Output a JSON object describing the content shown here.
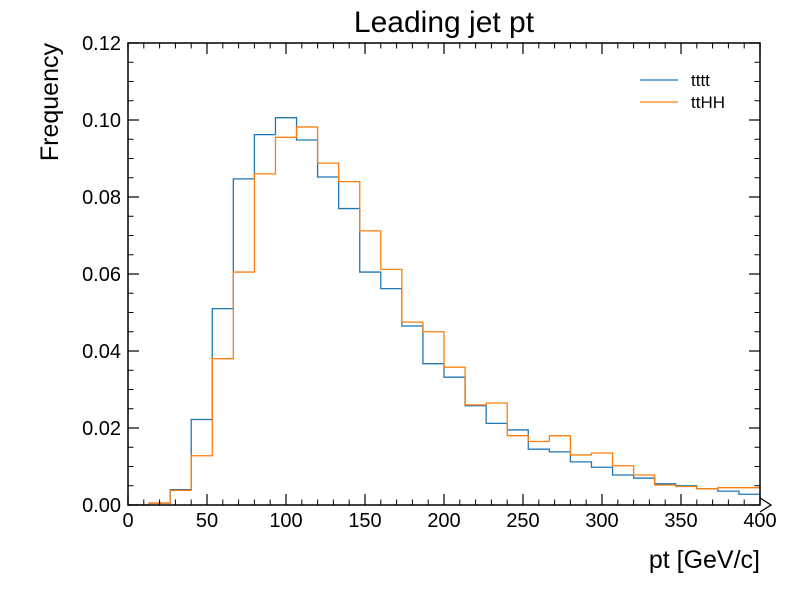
{
  "chart_data": {
    "type": "line",
    "title": "Leading jet pt",
    "xlabel": "pt [GeV/c]",
    "ylabel": "Frequency",
    "xlim": [
      0,
      400
    ],
    "ylim": [
      0,
      0.12
    ],
    "xticks": [
      0,
      50,
      100,
      150,
      200,
      250,
      300,
      350,
      400
    ],
    "xtick_labels": [
      "0",
      "50",
      "100",
      "150",
      "200",
      "250",
      "300",
      "350",
      "400"
    ],
    "yticks": [
      0,
      0.02,
      0.04,
      0.06,
      0.08,
      0.1,
      0.12
    ],
    "ytick_labels": [
      "0.00",
      "0.02",
      "0.04",
      "0.06",
      "0.08",
      "0.10",
      "0.12"
    ],
    "grid": false,
    "legend_position": "top-right",
    "bin_edges": [
      0,
      13.33,
      26.67,
      40,
      53.33,
      66.67,
      80,
      93.33,
      106.67,
      120,
      133.33,
      146.67,
      160,
      173.33,
      186.67,
      200,
      213.33,
      226.67,
      240,
      253.33,
      266.67,
      280,
      293.33,
      306.67,
      320,
      333.33,
      346.67,
      360,
      373.33,
      386.67,
      400
    ],
    "series": [
      {
        "name": "tttt",
        "color": "#1f77b4",
        "values": [
          0,
          0.0005,
          0.004,
          0.0222,
          0.051,
          0.0847,
          0.0962,
          0.1006,
          0.0948,
          0.0852,
          0.077,
          0.0605,
          0.0562,
          0.0465,
          0.0367,
          0.0332,
          0.0258,
          0.0212,
          0.0195,
          0.0145,
          0.0138,
          0.0112,
          0.0098,
          0.0078,
          0.007,
          0.0055,
          0.005,
          0.0042,
          0.0036,
          0.0028
        ]
      },
      {
        "name": "ttHH",
        "color": "#ff7f0e",
        "values": [
          0,
          0.0005,
          0.0038,
          0.0128,
          0.038,
          0.0605,
          0.086,
          0.0955,
          0.0982,
          0.0888,
          0.084,
          0.0712,
          0.0612,
          0.0475,
          0.045,
          0.0358,
          0.026,
          0.0265,
          0.018,
          0.0165,
          0.018,
          0.013,
          0.0135,
          0.0102,
          0.0078,
          0.0052,
          0.0048,
          0.0042,
          0.0045,
          0.0045
        ]
      }
    ]
  }
}
